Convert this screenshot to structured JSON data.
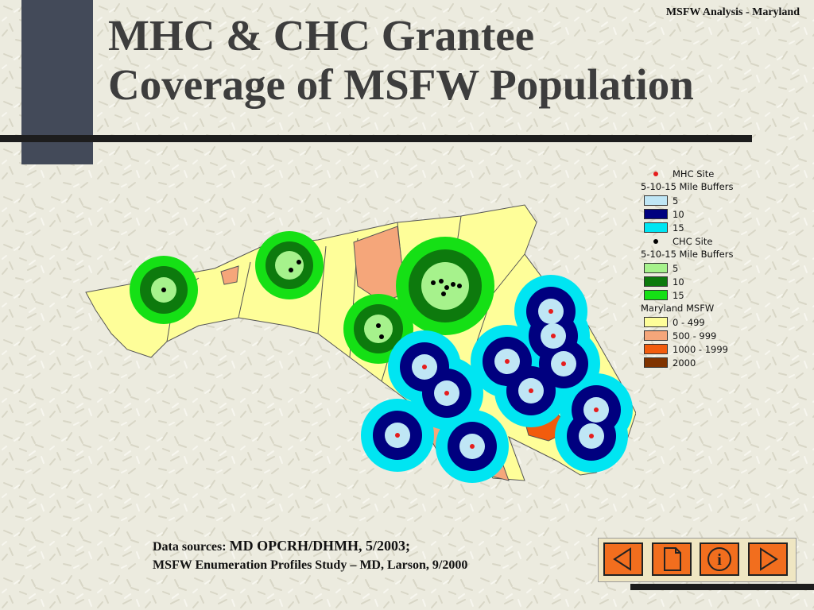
{
  "header": {
    "title_line1": "MHC & CHC Grantee",
    "title_line2": "Coverage of MSFW Population",
    "corner_label": "MSFW Analysis - Maryland"
  },
  "legend": {
    "mhc_site": "MHC Site",
    "mhc_buffers_title": "5-10-15 Mile Buffers",
    "mhc_buffers": [
      {
        "label": "5",
        "color": "#bfe6f5"
      },
      {
        "label": "10",
        "color": "#00007f"
      },
      {
        "label": "15",
        "color": "#00e5f2"
      }
    ],
    "chc_site": "CHC Site",
    "chc_buffers_title": "5-10-15 Mile Buffers",
    "chc_buffers": [
      {
        "label": "5",
        "color": "#a6f28c"
      },
      {
        "label": "10",
        "color": "#0d7a0d"
      },
      {
        "label": "15",
        "color": "#15e015"
      }
    ],
    "msfw_title": "Maryland MSFW",
    "msfw_classes": [
      {
        "label": "0 - 499",
        "color": "#fefe99"
      },
      {
        "label": "500 - 999",
        "color": "#f5a67a"
      },
      {
        "label": "1000 - 1999",
        "color": "#f25c0d"
      },
      {
        "label": "2000",
        "color": "#7f3300"
      }
    ]
  },
  "map": {
    "mhc_site_color": "#e51d1d",
    "chc_site_color": "#000000",
    "chc_sites": 6,
    "mhc_sites": 11
  },
  "sources": {
    "prefix": "Data sources: ",
    "line1": "MD OPCRH/DHMH, 5/2003;",
    "line2": "MSFW Enumeration Profiles Study – MD, Larson, 9/2000"
  },
  "nav": {
    "icons": [
      "previous-arrow-icon",
      "document-icon",
      "info-icon",
      "next-arrow-icon"
    ],
    "info_glyph": "i"
  }
}
